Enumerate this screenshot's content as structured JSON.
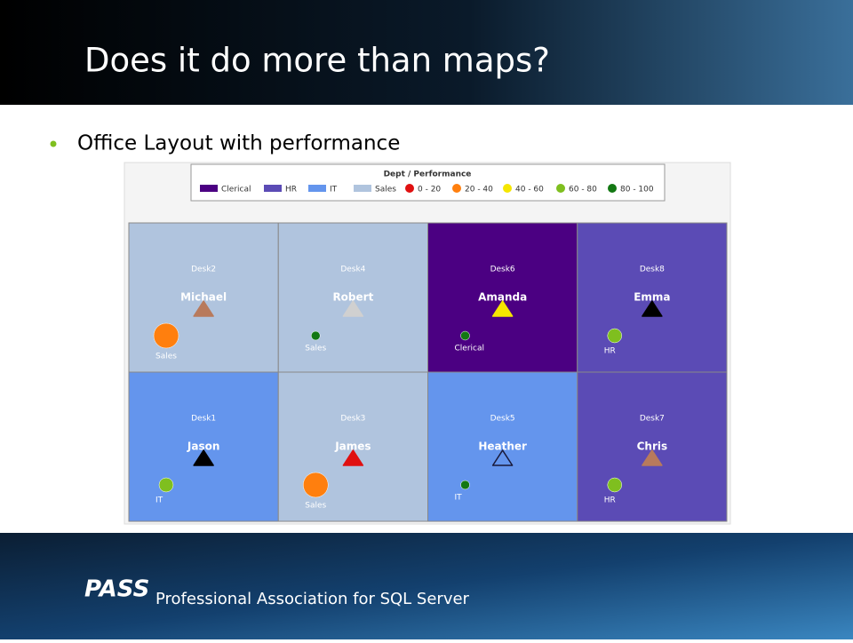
{
  "header": {
    "title": "Does it do more than maps?"
  },
  "bullet": "Office Layout with performance",
  "legend": {
    "title": "Dept / Performance",
    "departments": [
      {
        "label": "Clerical",
        "color": "#4b0082"
      },
      {
        "label": "HR",
        "color": "#5b4bb5"
      },
      {
        "label": "IT",
        "color": "#6495ed"
      },
      {
        "label": "Sales",
        "color": "#b0c4de"
      }
    ],
    "performance": [
      {
        "label": "0 - 20",
        "color": "#e01010"
      },
      {
        "label": "20 - 40",
        "color": "#ff7f0e"
      },
      {
        "label": "40 - 60",
        "color": "#f5e600"
      },
      {
        "label": "60 - 80",
        "color": "#7fbf1f"
      },
      {
        "label": "80 - 100",
        "color": "#137813"
      }
    ]
  },
  "desks": [
    {
      "desk": "Desk2",
      "name": "Michael",
      "dept": "Sales",
      "fill": "#b0c4de",
      "triangle": "#b87a5c",
      "circle": "#ff7f0e"
    },
    {
      "desk": "Desk4",
      "name": "Robert",
      "dept": "Sales",
      "fill": "#b0c4de",
      "triangle": "#d0d0d0",
      "circle": "#137813"
    },
    {
      "desk": "Desk6",
      "name": "Amanda",
      "dept": "Clerical",
      "fill": "#4b0082",
      "triangle": "#f5e600",
      "circle": "#137813"
    },
    {
      "desk": "Desk8",
      "name": "Emma",
      "dept": "HR",
      "fill": "#5b4bb5",
      "triangle": "#000000",
      "circle": "#7fbf1f"
    },
    {
      "desk": "Desk1",
      "name": "Jason",
      "dept": "IT",
      "fill": "#6495ed",
      "triangle": "#000000",
      "circle": "#7fbf1f"
    },
    {
      "desk": "Desk3",
      "name": "James",
      "dept": "Sales",
      "fill": "#b0c4de",
      "triangle": "#e01010",
      "circle": "#ff7f0e"
    },
    {
      "desk": "Desk5",
      "name": "Heather",
      "dept": "IT",
      "fill": "#6495ed",
      "triangle": "none",
      "circle": "#137813"
    },
    {
      "desk": "Desk7",
      "name": "Chris",
      "dept": "HR",
      "fill": "#5b4bb5",
      "triangle": "#b87a5c",
      "circle": "#7fbf1f"
    }
  ],
  "footer": {
    "logo": "PASS",
    "text": "Professional Association for SQL Server"
  }
}
